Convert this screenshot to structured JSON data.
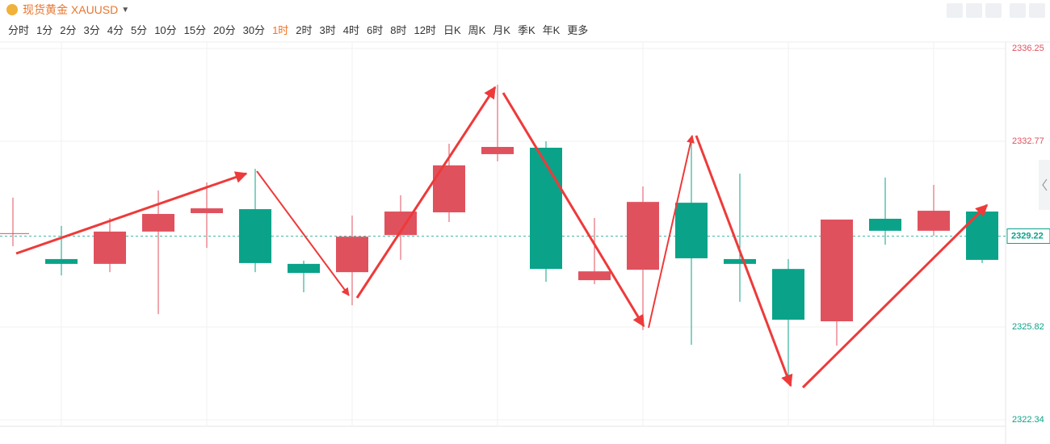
{
  "header": {
    "title": "现货黄金 XAUUSD",
    "timeframes": [
      "分时",
      "1分",
      "2分",
      "3分",
      "4分",
      "5分",
      "10分",
      "15分",
      "20分",
      "30分",
      "1时",
      "2时",
      "3时",
      "4时",
      "6时",
      "8时",
      "12时",
      "日K",
      "周K",
      "月K",
      "季K",
      "年K",
      "更多"
    ],
    "active_timeframe": "1时"
  },
  "chart_data": {
    "type": "candlestick",
    "up_color": "#e0515e",
    "down_color": "#0aa389",
    "open": [
      2329.33,
      2328.36,
      2328.18,
      2329.39,
      2330.08,
      2330.23,
      2328.18,
      2327.87,
      2329.26,
      2330.11,
      2332.29,
      2332.53,
      2327.57,
      2327.96,
      2330.47,
      2328.36,
      2327.99,
      2326.03,
      2329.87,
      2329.42,
      2330.14
    ],
    "high": [
      2330.66,
      2329.6,
      2329.9,
      2330.93,
      2331.23,
      2331.74,
      2328.3,
      2329.99,
      2330.75,
      2332.68,
      2334.89,
      2332.77,
      2329.9,
      2331.08,
      2332.77,
      2331.56,
      2328.36,
      2329.84,
      2331.41,
      2331.14,
      2330.14
    ],
    "low": [
      2328.84,
      2327.75,
      2327.87,
      2326.3,
      2328.78,
      2327.87,
      2327.12,
      2326.63,
      2328.33,
      2329.75,
      2332.02,
      2327.51,
      2327.42,
      2325.7,
      2325.15,
      2326.76,
      2323.85,
      2325.12,
      2328.9,
      2329.23,
      2328.21
    ],
    "close": [
      2329.33,
      2328.18,
      2329.39,
      2330.05,
      2330.26,
      2328.21,
      2327.84,
      2329.2,
      2330.14,
      2331.87,
      2332.56,
      2327.99,
      2327.9,
      2330.5,
      2328.39,
      2328.18,
      2326.09,
      2329.84,
      2329.42,
      2330.17,
      2328.33
    ],
    "ylim": [
      2322.1,
      2336.49
    ],
    "yticks": [
      2336.25,
      2332.77,
      2325.82,
      2322.34
    ],
    "current_price": 2329.22,
    "grid": true
  }
}
